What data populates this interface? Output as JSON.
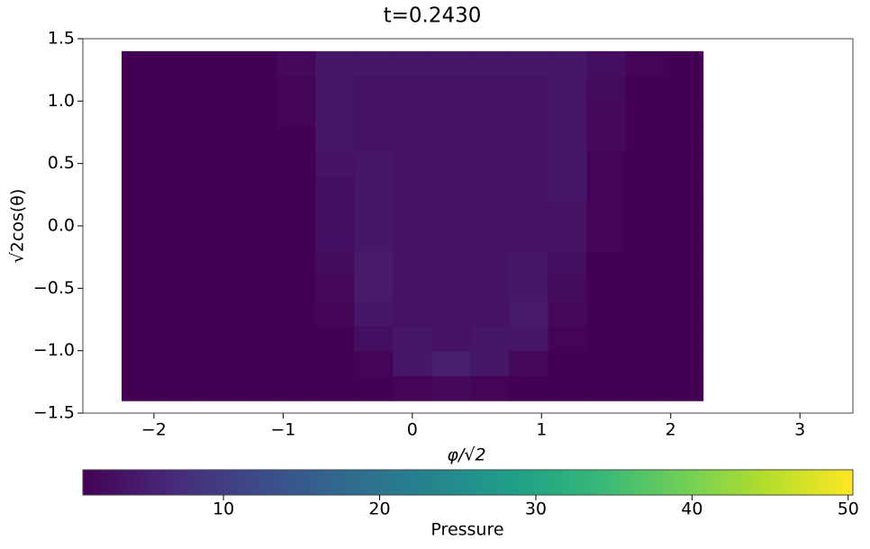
{
  "chart_data": {
    "type": "heatmap",
    "title": "t=0.2430",
    "x_label": "φ/√2",
    "y_label": "√2cos(θ)",
    "colorbar_label": "Pressure",
    "colormap": "viridis",
    "x": [
      -2.1,
      -1.8,
      -1.5,
      -1.2,
      -0.9,
      -0.6,
      -0.3,
      0,
      0.3,
      0.6,
      0.9,
      1.2,
      1.5,
      1.8,
      2.1
    ],
    "y": [
      -1.3,
      -1.1,
      -0.9,
      -0.7,
      -0.5,
      -0.3,
      -0.1,
      0.1,
      0.3,
      0.5,
      0.7,
      0.9,
      1.1,
      1.3
    ],
    "z": [
      [
        1,
        1,
        1,
        1,
        1,
        1,
        1,
        1.5,
        2,
        1.5,
        1,
        1,
        1,
        1,
        1
      ],
      [
        1,
        1,
        1,
        1,
        1,
        1,
        1.5,
        4,
        5,
        4,
        2,
        1,
        1,
        1,
        1
      ],
      [
        1,
        1,
        1,
        1,
        1,
        1,
        3,
        4,
        3.5,
        4,
        4,
        1.5,
        1,
        1,
        1
      ],
      [
        1,
        1,
        1,
        1,
        1,
        1.5,
        4,
        3.5,
        3.5,
        3.5,
        4.5,
        2,
        1,
        1,
        1
      ],
      [
        1,
        1,
        1,
        1,
        1,
        2,
        4.5,
        3.5,
        3.5,
        3.5,
        4,
        2.5,
        1,
        1,
        1
      ],
      [
        1,
        1,
        1,
        1,
        1,
        2.5,
        4.5,
        3.5,
        3.5,
        3.5,
        4,
        3,
        1,
        1,
        1
      ],
      [
        1,
        1,
        1,
        1,
        1,
        3,
        4,
        3.5,
        3.5,
        3.5,
        3.5,
        3.5,
        1.5,
        1,
        1
      ],
      [
        1,
        1,
        1,
        1,
        1,
        3,
        4,
        3.5,
        3.5,
        3.5,
        3.5,
        3.5,
        1.5,
        1,
        1
      ],
      [
        1,
        1,
        1,
        1,
        1,
        3,
        4,
        3.5,
        3.5,
        3.5,
        3.5,
        4,
        1.5,
        1,
        1
      ],
      [
        1,
        1,
        1,
        1,
        1,
        3.5,
        4,
        3.5,
        3.5,
        3.5,
        3.5,
        4,
        1.5,
        1,
        1
      ],
      [
        1,
        1,
        1,
        1,
        1,
        4,
        3.5,
        3.5,
        3.5,
        3.5,
        3.5,
        4,
        2,
        1,
        1
      ],
      [
        1,
        1,
        1,
        1,
        1.5,
        4,
        3.5,
        3.5,
        3.5,
        3.5,
        3.5,
        4,
        2,
        1,
        1
      ],
      [
        1,
        1,
        1,
        1,
        1.5,
        4,
        3.5,
        3.5,
        3.5,
        3.5,
        3.5,
        4,
        2.5,
        1,
        1
      ],
      [
        1,
        1,
        1,
        1,
        2,
        4,
        4,
        4,
        4,
        4,
        4,
        4,
        3,
        1.5,
        1
      ]
    ],
    "xlim": [
      -2.55,
      3.41
    ],
    "ylim": [
      -1.5,
      1.5
    ],
    "xticks": [
      {
        "value": -2,
        "label": "−2"
      },
      {
        "value": -1,
        "label": "−1"
      },
      0,
      1,
      2,
      3
    ],
    "yticks": [
      {
        "value": -1.5,
        "label": "−1.5"
      },
      {
        "value": -1.0,
        "label": "−1.0"
      },
      {
        "value": -0.5,
        "label": "−0.5"
      },
      {
        "value": 0,
        "label": "0.0"
      },
      0.5,
      {
        "value": 1,
        "label": "1.0"
      },
      1.5
    ],
    "clim": [
      1,
      50.3
    ],
    "cticks": [
      10,
      20,
      30,
      40,
      50
    ]
  }
}
